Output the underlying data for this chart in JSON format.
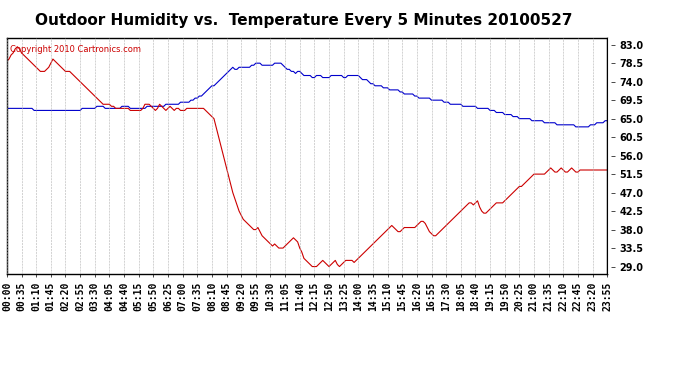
{
  "title": "Outdoor Humidity vs.  Temperature Every 5 Minutes 20100527",
  "copyright_text": "Copyright 2010 Cartronics.com",
  "background_color": "#ffffff",
  "plot_bg_color": "#ffffff",
  "grid_color": "#b0b0b0",
  "blue_color": "#0000cc",
  "red_color": "#cc0000",
  "right_yticks": [
    29.0,
    33.5,
    38.0,
    42.5,
    47.0,
    51.5,
    56.0,
    60.5,
    65.0,
    69.5,
    74.0,
    78.5,
    83.0
  ],
  "ymin": 27.25,
  "ymax": 84.75,
  "title_fontsize": 11,
  "tick_fontsize": 7,
  "num_points": 288,
  "blue_data": [
    67.5,
    67.5,
    67.5,
    67.5,
    67.5,
    67.5,
    67.5,
    67.5,
    67.5,
    67.5,
    67.5,
    67.5,
    67.5,
    67.0,
    67.0,
    67.0,
    67.0,
    67.0,
    67.0,
    67.0,
    67.0,
    67.0,
    67.0,
    67.0,
    67.0,
    67.0,
    67.0,
    67.0,
    67.0,
    67.0,
    67.0,
    67.0,
    67.0,
    67.0,
    67.0,
    67.0,
    67.5,
    67.5,
    67.5,
    67.5,
    67.5,
    67.5,
    67.5,
    68.0,
    68.0,
    68.0,
    68.0,
    67.5,
    67.5,
    67.5,
    67.5,
    67.5,
    67.5,
    67.5,
    67.5,
    68.0,
    68.0,
    68.0,
    68.0,
    67.5,
    67.5,
    67.5,
    67.5,
    67.5,
    67.5,
    67.5,
    67.5,
    68.0,
    68.0,
    68.0,
    68.0,
    68.0,
    68.0,
    68.0,
    68.0,
    68.0,
    68.5,
    68.5,
    68.5,
    68.5,
    68.5,
    68.5,
    68.5,
    69.0,
    69.0,
    69.0,
    69.0,
    69.0,
    69.5,
    69.5,
    70.0,
    70.0,
    70.5,
    70.5,
    71.0,
    71.5,
    72.0,
    72.5,
    73.0,
    73.0,
    73.5,
    74.0,
    74.5,
    75.0,
    75.5,
    76.0,
    76.5,
    77.0,
    77.5,
    77.0,
    77.0,
    77.5,
    77.5,
    77.5,
    77.5,
    77.5,
    77.5,
    78.0,
    78.0,
    78.5,
    78.5,
    78.5,
    78.0,
    78.0,
    78.0,
    78.0,
    78.0,
    78.0,
    78.5,
    78.5,
    78.5,
    78.5,
    78.0,
    77.5,
    77.0,
    77.0,
    76.5,
    76.5,
    76.0,
    76.5,
    76.5,
    76.0,
    75.5,
    75.5,
    75.5,
    75.5,
    75.0,
    75.0,
    75.5,
    75.5,
    75.5,
    75.0,
    75.0,
    75.0,
    75.0,
    75.5,
    75.5,
    75.5,
    75.5,
    75.5,
    75.5,
    75.0,
    75.0,
    75.5,
    75.5,
    75.5,
    75.5,
    75.5,
    75.5,
    75.0,
    74.5,
    74.5,
    74.5,
    74.0,
    73.5,
    73.5,
    73.0,
    73.0,
    73.0,
    73.0,
    72.5,
    72.5,
    72.5,
    72.0,
    72.0,
    72.0,
    72.0,
    72.0,
    71.5,
    71.5,
    71.0,
    71.0,
    71.0,
    71.0,
    71.0,
    70.5,
    70.5,
    70.0,
    70.0,
    70.0,
    70.0,
    70.0,
    70.0,
    69.5,
    69.5,
    69.5,
    69.5,
    69.5,
    69.5,
    69.0,
    69.0,
    69.0,
    68.5,
    68.5,
    68.5,
    68.5,
    68.5,
    68.5,
    68.0,
    68.0,
    68.0,
    68.0,
    68.0,
    68.0,
    68.0,
    67.5,
    67.5,
    67.5,
    67.5,
    67.5,
    67.5,
    67.0,
    67.0,
    67.0,
    66.5,
    66.5,
    66.5,
    66.5,
    66.0,
    66.0,
    66.0,
    66.0,
    65.5,
    65.5,
    65.5,
    65.0,
    65.0,
    65.0,
    65.0,
    65.0,
    65.0,
    64.5,
    64.5,
    64.5,
    64.5,
    64.5,
    64.5,
    64.0,
    64.0,
    64.0,
    64.0,
    64.0,
    64.0,
    63.5,
    63.5,
    63.5,
    63.5,
    63.5,
    63.5,
    63.5,
    63.5,
    63.5,
    63.0,
    63.0,
    63.0,
    63.0,
    63.0,
    63.0,
    63.0,
    63.5,
    63.5,
    63.5,
    64.0,
    64.0,
    64.0,
    64.0,
    64.5,
    64.5,
    65.0,
    65.0
  ],
  "red_data": [
    79.0,
    79.5,
    80.5,
    81.0,
    82.0,
    82.5,
    82.0,
    81.0,
    80.5,
    80.0,
    79.5,
    79.0,
    78.5,
    78.0,
    77.5,
    77.0,
    76.5,
    76.5,
    76.5,
    77.0,
    77.5,
    78.5,
    79.5,
    79.0,
    78.5,
    78.0,
    77.5,
    77.0,
    76.5,
    76.5,
    76.5,
    76.0,
    75.5,
    75.0,
    74.5,
    74.0,
    73.5,
    73.0,
    72.5,
    72.0,
    71.5,
    71.0,
    70.5,
    70.0,
    69.5,
    69.0,
    68.5,
    68.5,
    68.5,
    68.5,
    68.0,
    68.0,
    67.5,
    67.5,
    67.5,
    67.5,
    67.5,
    67.5,
    67.5,
    67.0,
    67.0,
    67.0,
    67.0,
    67.0,
    67.0,
    67.5,
    68.5,
    68.5,
    68.5,
    68.0,
    67.5,
    67.0,
    67.5,
    68.5,
    68.0,
    67.5,
    67.0,
    67.5,
    68.0,
    67.5,
    67.0,
    67.5,
    67.5,
    67.0,
    67.0,
    67.0,
    67.5,
    67.5,
    67.5,
    67.5,
    67.5,
    67.5,
    67.5,
    67.5,
    67.5,
    67.0,
    66.5,
    66.0,
    65.5,
    65.0,
    63.0,
    61.0,
    59.0,
    57.0,
    55.0,
    53.0,
    51.0,
    49.0,
    47.0,
    45.5,
    44.0,
    42.5,
    41.5,
    40.5,
    40.0,
    39.5,
    39.0,
    38.5,
    38.0,
    38.0,
    38.5,
    37.5,
    36.5,
    36.0,
    35.5,
    35.0,
    34.5,
    34.0,
    34.5,
    34.0,
    33.5,
    33.5,
    33.5,
    34.0,
    34.5,
    35.0,
    35.5,
    36.0,
    35.5,
    35.0,
    33.5,
    32.5,
    31.0,
    30.5,
    30.0,
    29.5,
    29.0,
    29.0,
    29.0,
    29.5,
    30.0,
    30.5,
    30.0,
    29.5,
    29.0,
    29.5,
    30.0,
    30.5,
    29.5,
    29.0,
    29.5,
    30.0,
    30.5,
    30.5,
    30.5,
    30.5,
    30.0,
    30.5,
    31.0,
    31.5,
    32.0,
    32.5,
    33.0,
    33.5,
    34.0,
    34.5,
    35.0,
    35.5,
    36.0,
    36.5,
    37.0,
    37.5,
    38.0,
    38.5,
    39.0,
    38.5,
    38.0,
    37.5,
    37.5,
    38.0,
    38.5,
    38.5,
    38.5,
    38.5,
    38.5,
    38.5,
    39.0,
    39.5,
    40.0,
    40.0,
    39.5,
    38.5,
    37.5,
    37.0,
    36.5,
    36.5,
    37.0,
    37.5,
    38.0,
    38.5,
    39.0,
    39.5,
    40.0,
    40.5,
    41.0,
    41.5,
    42.0,
    42.5,
    43.0,
    43.5,
    44.0,
    44.5,
    44.5,
    44.0,
    44.5,
    45.0,
    43.5,
    42.5,
    42.0,
    42.0,
    42.5,
    43.0,
    43.5,
    44.0,
    44.5,
    44.5,
    44.5,
    44.5,
    45.0,
    45.5,
    46.0,
    46.5,
    47.0,
    47.5,
    48.0,
    48.5,
    48.5,
    49.0,
    49.5,
    50.0,
    50.5,
    51.0,
    51.5,
    51.5,
    51.5,
    51.5,
    51.5,
    51.5,
    52.0,
    52.5,
    53.0,
    52.5,
    52.0,
    52.0,
    52.5,
    53.0,
    52.5,
    52.0,
    52.0,
    52.5,
    53.0,
    52.5,
    52.0,
    52.0,
    52.5,
    52.5,
    52.5,
    52.5,
    52.5,
    52.5,
    52.5,
    52.5,
    52.5,
    52.5,
    52.5,
    52.5,
    52.5,
    52.5,
    52.5,
    52.5
  ],
  "xtick_labels": [
    "00:00",
    "00:35",
    "01:10",
    "01:45",
    "02:20",
    "02:55",
    "03:30",
    "04:05",
    "04:40",
    "05:15",
    "05:50",
    "06:25",
    "07:00",
    "07:35",
    "08:10",
    "08:45",
    "09:20",
    "09:55",
    "10:30",
    "11:05",
    "11:40",
    "12:15",
    "12:50",
    "13:25",
    "14:00",
    "14:35",
    "15:10",
    "15:45",
    "16:20",
    "16:55",
    "17:30",
    "18:05",
    "18:40",
    "19:15",
    "19:50",
    "20:25",
    "21:00",
    "21:35",
    "22:10",
    "22:45",
    "23:20",
    "23:55"
  ],
  "num_xticks": 42
}
